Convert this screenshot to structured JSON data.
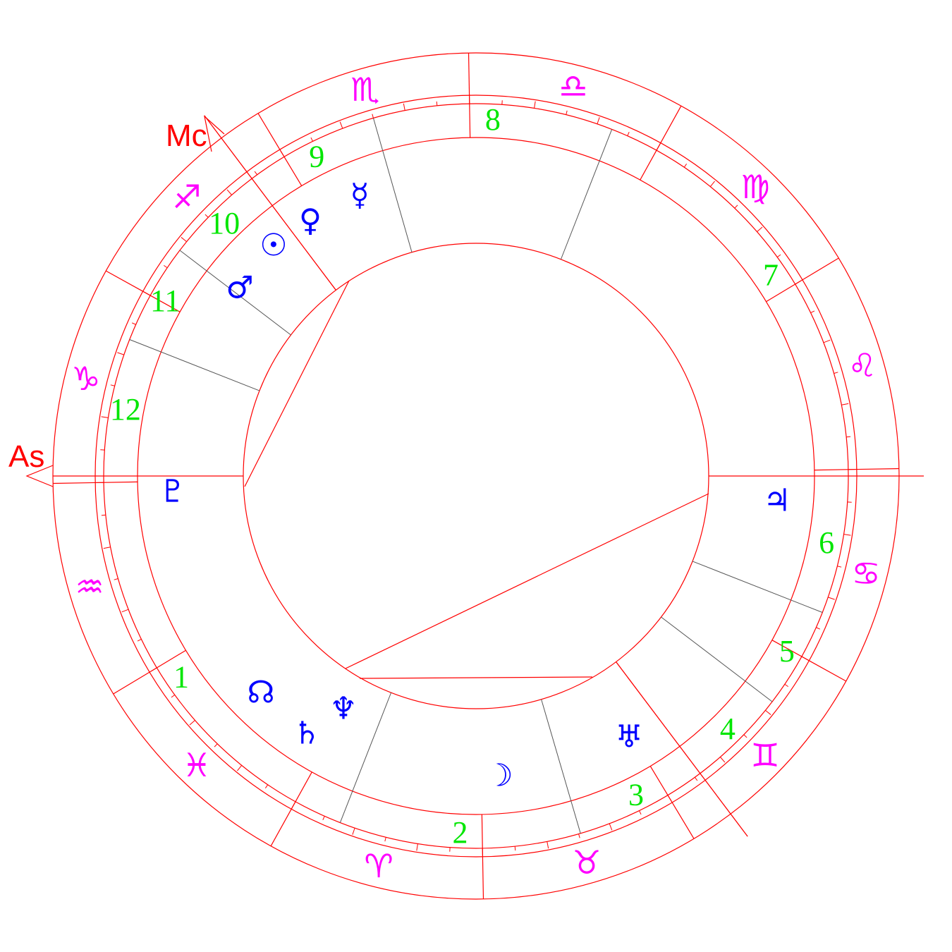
{
  "angles": {
    "ascendant_label": "As",
    "midheaven_label": "Mc"
  },
  "signs": [
    {
      "name": "aries",
      "glyph": "♈"
    },
    {
      "name": "taurus",
      "glyph": "♉"
    },
    {
      "name": "gemini",
      "glyph": "♊"
    },
    {
      "name": "cancer",
      "glyph": "♋"
    },
    {
      "name": "leo",
      "glyph": "♌"
    },
    {
      "name": "virgo",
      "glyph": "♍"
    },
    {
      "name": "libra",
      "glyph": "♎"
    },
    {
      "name": "scorpio",
      "glyph": "♏"
    },
    {
      "name": "sagittarius",
      "glyph": "♐"
    },
    {
      "name": "capricorn",
      "glyph": "♑"
    },
    {
      "name": "aquarius",
      "glyph": "♒"
    },
    {
      "name": "pisces",
      "glyph": "♓"
    }
  ],
  "houses": [
    "1",
    "2",
    "3",
    "4",
    "5",
    "6",
    "7",
    "8",
    "9",
    "10",
    "11",
    "12"
  ],
  "planets": [
    {
      "name": "pluto",
      "glyph": "♇"
    },
    {
      "name": "jupiter",
      "glyph": "♃"
    },
    {
      "name": "mercury",
      "glyph": "☿"
    },
    {
      "name": "venus",
      "glyph": "♀"
    },
    {
      "name": "sun",
      "glyph": "☉"
    },
    {
      "name": "mars",
      "glyph": "♂"
    },
    {
      "name": "north-node",
      "glyph": "☊"
    },
    {
      "name": "saturn",
      "glyph": "♄"
    },
    {
      "name": "neptune",
      "glyph": "♆"
    },
    {
      "name": "moon",
      "glyph": "☽"
    },
    {
      "name": "uranus",
      "glyph": "♅"
    }
  ],
  "colors": {
    "lines": "#ff0000",
    "minor_cusps": "#555555",
    "signs": "#ff00ff",
    "houses": "#00e600",
    "planets": "#0000ff"
  }
}
